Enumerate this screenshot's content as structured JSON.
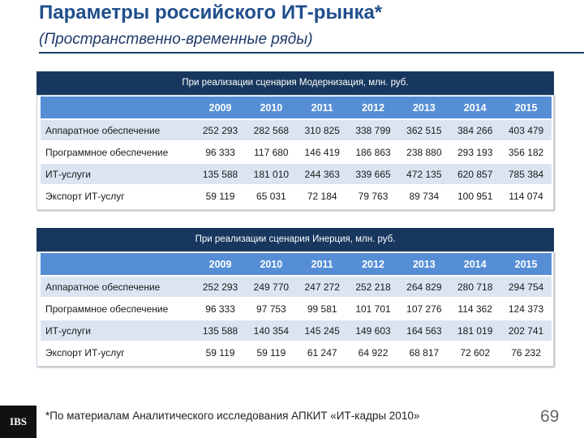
{
  "header": {
    "title": "Параметры российского ИТ-рынка*",
    "subtitle": "(Пространственно-временные ряды)"
  },
  "tables": [
    {
      "caption": "При реализации сценария Модернизация, млн. руб.",
      "columns": [
        "2009",
        "2010",
        "2011",
        "2012",
        "2013",
        "2014",
        "2015"
      ],
      "rows": [
        [
          "Аппаратное обеспечение",
          "252 293",
          "282 568",
          "310 825",
          "338 799",
          "362 515",
          "384 266",
          "403 479"
        ],
        [
          "Программное обеспечение",
          "96 333",
          "117 680",
          "146 419",
          "186 863",
          "238 880",
          "293 193",
          "356 182"
        ],
        [
          "ИТ-услуги",
          "135 588",
          "181 010",
          "244 363",
          "339 665",
          "472 135",
          "620 857",
          "785 384"
        ],
        [
          "Экспорт ИТ-услуг",
          "59 119",
          "65 031",
          "72 184",
          "79 763",
          "89 734",
          "100 951",
          "114 074"
        ]
      ]
    },
    {
      "caption": "При реализации сценария Инерция, млн. руб.",
      "columns": [
        "2009",
        "2010",
        "2011",
        "2012",
        "2013",
        "2014",
        "2015"
      ],
      "rows": [
        [
          "Аппаратное обеспечение",
          "252 293",
          "249 770",
          "247 272",
          "252 218",
          "264 829",
          "280 718",
          "294 754"
        ],
        [
          "Программное обеспечение",
          "96 333",
          "97 753",
          "99 581",
          "101 701",
          "107 276",
          "114 362",
          "124 373"
        ],
        [
          "ИТ-услуги",
          "135 588",
          "140 354",
          "145 245",
          "149 603",
          "164 563",
          "181 019",
          "202 741"
        ],
        [
          "Экспорт ИТ-услуг",
          "59 119",
          "59 119",
          "61 247",
          "64 922",
          "68 817",
          "72 602",
          "76 232"
        ]
      ]
    }
  ],
  "footer": {
    "logo": "IBS",
    "note": "*По материалам Аналитического исследования АПКИТ «ИТ-кадры 2010»",
    "page": "69"
  }
}
